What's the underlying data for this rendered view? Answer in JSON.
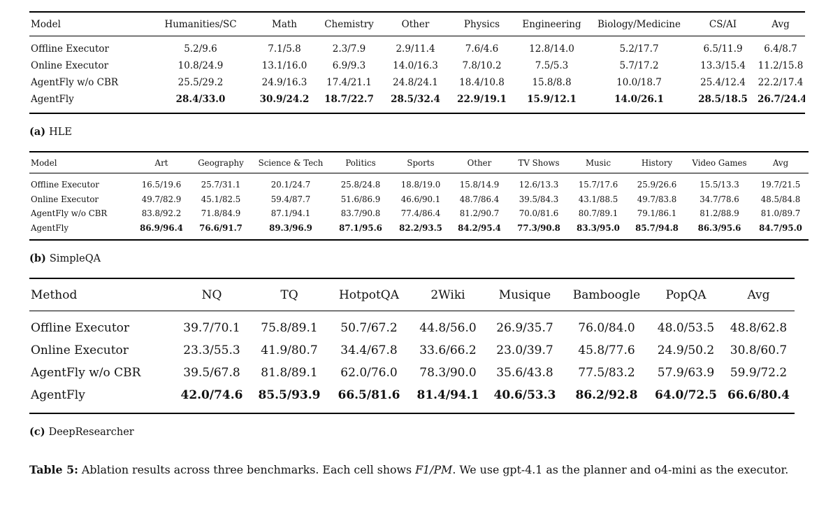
{
  "tables": [
    {
      "label_prefix": "(a)",
      "label": "HLE",
      "header": [
        "Model",
        "Humanities/SC",
        "Math",
        "Chemistry",
        "Other",
        "Physics",
        "Engineering",
        "Biology/Medicine",
        "CS/AI",
        "Avg"
      ],
      "rows": [
        {
          "name": "Offline Executor",
          "bold": false,
          "values": [
            "5.2/9.6",
            "7.1/5.8",
            "2.3/7.9",
            "2.9/11.4",
            "7.6/4.6",
            "12.8/14.0",
            "5.2/17.7",
            "6.5/11.9",
            "6.4/8.7"
          ]
        },
        {
          "name": "Online Executor",
          "bold": false,
          "values": [
            "10.8/24.9",
            "13.1/16.0",
            "6.9/9.3",
            "14.0/16.3",
            "7.8/10.2",
            "7.5/5.3",
            "5.7/17.2",
            "13.3/15.4",
            "11.2/15.8"
          ]
        },
        {
          "name": "AgentFly w/o CBR",
          "bold": false,
          "values": [
            "25.5/29.2",
            "24.9/16.3",
            "17.4/21.1",
            "24.8/24.1",
            "18.4/10.8",
            "15.8/8.8",
            "10.0/18.7",
            "25.4/12.4",
            "22.2/17.4"
          ]
        },
        {
          "name": "AgentFly",
          "bold": true,
          "values": [
            "28.4/33.0",
            "30.9/24.2",
            "18.7/22.7",
            "28.5/32.4",
            "22.9/19.1",
            "15.9/12.1",
            "14.0/26.1",
            "28.5/18.5",
            "26.7/24.4"
          ]
        }
      ]
    },
    {
      "label_prefix": "(b)",
      "label": "SimpleQA",
      "header": [
        "Model",
        "Art",
        "Geography",
        "Science & Tech",
        "Politics",
        "Sports",
        "Other",
        "TV Shows",
        "Music",
        "History",
        "Video Games",
        "Avg"
      ],
      "rows": [
        {
          "name": "Offline Executor",
          "bold": false,
          "values": [
            "16.5/19.6",
            "25.7/31.1",
            "20.1/24.7",
            "25.8/24.8",
            "18.8/19.0",
            "15.8/14.9",
            "12.6/13.3",
            "15.7/17.6",
            "25.9/26.6",
            "15.5/13.3",
            "19.7/21.5"
          ]
        },
        {
          "name": "Online Executor",
          "bold": false,
          "values": [
            "49.7/82.9",
            "45.1/82.5",
            "59.4/87.7",
            "51.6/86.9",
            "46.6/90.1",
            "48.7/86.4",
            "39.5/84.3",
            "43.1/88.5",
            "49.7/83.8",
            "34.7/78.6",
            "48.5/84.8"
          ]
        },
        {
          "name": "AgentFly w/o CBR",
          "bold": false,
          "values": [
            "83.8/92.2",
            "71.8/84.9",
            "87.1/94.1",
            "83.7/90.8",
            "77.4/86.4",
            "81.2/90.7",
            "70.0/81.6",
            "80.7/89.1",
            "79.1/86.1",
            "81.2/88.9",
            "81.0/89.7"
          ]
        },
        {
          "name": "AgentFly",
          "bold": true,
          "values": [
            "86.9/96.4",
            "76.6/91.7",
            "89.3/96.9",
            "87.1/95.6",
            "82.2/93.5",
            "84.2/95.4",
            "77.3/90.8",
            "83.3/95.0",
            "85.7/94.8",
            "86.3/95.6",
            "84.7/95.0"
          ]
        }
      ]
    },
    {
      "label_prefix": "(c)",
      "label": "DeepResearcher",
      "header": [
        "Method",
        "NQ",
        "TQ",
        "HotpotQA",
        "2Wiki",
        "Musique",
        "Bamboogle",
        "PopQA",
        "Avg"
      ],
      "rows": [
        {
          "name": "Offline Executor",
          "bold": false,
          "values": [
            "39.7/70.1",
            "75.8/89.1",
            "50.7/67.2",
            "44.8/56.0",
            "26.9/35.7",
            "76.0/84.0",
            "48.0/53.5",
            "48.8/62.8"
          ]
        },
        {
          "name": "Online Executor",
          "bold": false,
          "values": [
            "23.3/55.3",
            "41.9/80.7",
            "34.4/67.8",
            "33.6/66.2",
            "23.0/39.7",
            "45.8/77.6",
            "24.9/50.2",
            "30.8/60.7"
          ]
        },
        {
          "name": "AgentFly w/o CBR",
          "bold": false,
          "values": [
            "39.5/67.8",
            "81.8/89.1",
            "62.0/76.0",
            "78.3/90.0",
            "35.6/43.8",
            "77.5/83.2",
            "57.9/63.9",
            "59.9/72.2"
          ]
        },
        {
          "name": "AgentFly",
          "bold": true,
          "values": [
            "42.0/74.6",
            "85.5/93.9",
            "66.5/81.6",
            "81.4/94.1",
            "40.6/53.3",
            "86.2/92.8",
            "64.0/72.5",
            "66.6/80.4"
          ]
        }
      ]
    }
  ],
  "caption": {
    "prefix": "Table 5:",
    "body1": " Ablation results across three benchmarks. Each cell shows ",
    "italic": "F1/PM",
    "body2": ". We use gpt-4.1 as the planner and o4-mini as the executor."
  }
}
